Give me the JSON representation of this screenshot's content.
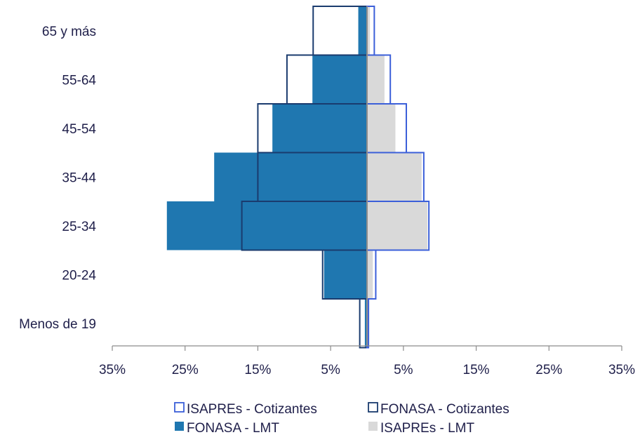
{
  "chart_data": {
    "type": "bar",
    "orientation": "horizontal",
    "layout": "population-pyramid",
    "categories": [
      "Menos de 19",
      "20-24",
      "25-34",
      "35-44",
      "45-54",
      "55-64",
      "65 y más"
    ],
    "x_ticks": [
      -35,
      -25,
      -15,
      -5,
      5,
      15,
      25,
      35
    ],
    "x_tick_labels": [
      "35%",
      "25%",
      "15%",
      "5%",
      "5%",
      "15%",
      "25%",
      "35%"
    ],
    "xlim": [
      -35,
      35
    ],
    "grid": false,
    "legend_position": "bottom",
    "series": [
      {
        "name": "FONASA - LMT",
        "side": "left",
        "style": "filled",
        "color": "#1f77b0",
        "values": [
          0.3,
          5.9,
          27.5,
          21.0,
          13.0,
          7.5,
          1.2
        ]
      },
      {
        "name": "ISAPREs - LMT",
        "side": "right",
        "style": "filled",
        "color": "#d9d9d9",
        "values": [
          0.3,
          0.8,
          8.3,
          7.5,
          3.9,
          2.4,
          0.4
        ]
      },
      {
        "name": "FONASA - Cotizantes",
        "side": "left",
        "style": "outline",
        "color": "#1a3b6e",
        "values": [
          1.0,
          6.1,
          17.2,
          15.0,
          15.0,
          11.0,
          7.4
        ]
      },
      {
        "name": "ISAPREs - Cotizantes",
        "side": "right",
        "style": "outline",
        "color": "#3b5fd9",
        "values": [
          0.2,
          1.2,
          8.5,
          7.8,
          5.4,
          3.2,
          1.0
        ]
      }
    ],
    "legend": [
      {
        "label": "ISAPREs - Cotizantes",
        "swatch": "outline",
        "color": "#3b5fd9"
      },
      {
        "label": "FONASA - Cotizantes",
        "swatch": "outline",
        "color": "#1a3b6e"
      },
      {
        "label": "FONASA - LMT",
        "swatch": "filled",
        "color": "#1f77b0"
      },
      {
        "label": "ISAPREs - LMT",
        "swatch": "filled",
        "color": "#d9d9d9"
      }
    ],
    "axis_color": "#8c8c8c",
    "text_color": "#1f1f4a"
  }
}
